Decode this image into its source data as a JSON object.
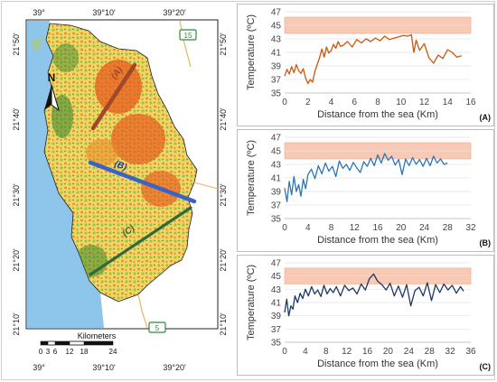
{
  "map": {
    "top_lon_labels": [
      "39°",
      "39°10'",
      "39°20'"
    ],
    "bottom_lon_labels": [
      "39°",
      "39°10'",
      "39°20'"
    ],
    "left_lat_labels": [
      "21°50'",
      "21°40'",
      "21°30'",
      "21°20'",
      "21°10'"
    ],
    "right_lat_labels": [
      "21°50'",
      "21°40'",
      "21°30'",
      "21°20'",
      "21°10'"
    ],
    "north_label": "N",
    "scale_title": "Kilometers",
    "scale_ticks": [
      "0",
      "3",
      "6",
      "12",
      "18",
      "24"
    ],
    "route_15": "15",
    "route_5": "5",
    "transects": [
      {
        "label": "(A)",
        "color": "#a0482a"
      },
      {
        "label": "(B)",
        "color": "#3a63c8"
      },
      {
        "label": "(C)",
        "color": "#2e6a3a"
      }
    ],
    "colors": {
      "sea": "#8ec5ea",
      "land": "#f3dc73",
      "hot": "#e65b1c",
      "vegetation": "#3d8b2e"
    }
  },
  "chart_data": [
    {
      "type": "line",
      "panel_label": "(A)",
      "ylabel": "Temperature (ºC)",
      "xlabel": "Distance from the sea (Km)",
      "ylim": [
        35,
        47
      ],
      "yticks": [
        35,
        37,
        39,
        41,
        43,
        45,
        47
      ],
      "xlim": [
        0,
        16
      ],
      "xticks": [
        0,
        2,
        4,
        6,
        8,
        10,
        12,
        14,
        16
      ],
      "band": [
        43.8,
        46.2
      ],
      "series": [
        {
          "color": "#c55a11",
          "x": [
            0,
            0.2,
            0.4,
            0.6,
            0.8,
            1.0,
            1.2,
            1.4,
            1.6,
            1.8,
            2.0,
            2.2,
            2.4,
            2.6,
            2.8,
            3.0,
            3.2,
            3.4,
            3.6,
            3.8,
            4.0,
            4.2,
            4.4,
            4.6,
            4.8,
            5.0,
            5.4,
            5.8,
            6.2,
            6.6,
            7.0,
            7.4,
            7.8,
            8.2,
            8.6,
            9.0,
            9.4,
            9.8,
            10.2,
            10.6,
            10.9,
            11.1,
            11.3,
            11.6,
            12.0,
            12.4,
            12.8,
            13.2,
            13.6,
            14.0,
            14.4,
            14.8,
            15.2
          ],
          "y": [
            37.5,
            38.5,
            37.8,
            38.9,
            38.0,
            39.2,
            38.3,
            37.9,
            38.6,
            37.2,
            36.4,
            37.0,
            36.6,
            38.2,
            39.2,
            40.2,
            41.5,
            40.3,
            41.8,
            40.9,
            41.3,
            42.2,
            41.6,
            42.6,
            41.9,
            42.0,
            42.6,
            41.8,
            42.9,
            42.4,
            43.0,
            42.6,
            43.1,
            42.7,
            43.4,
            42.9,
            43.1,
            43.3,
            43.5,
            43.4,
            43.6,
            41.0,
            42.8,
            41.3,
            42.3,
            40.2,
            39.4,
            40.6,
            40.1,
            41.4,
            41.0,
            40.3,
            40.5
          ]
        }
      ]
    },
    {
      "type": "line",
      "panel_label": "(B)",
      "ylabel": "Temperature (ºC)",
      "xlabel": "Distance from the sea (Km)",
      "ylim": [
        35,
        47
      ],
      "yticks": [
        35,
        37,
        39,
        41,
        43,
        45,
        47
      ],
      "xlim": [
        0,
        32
      ],
      "xticks": [
        0,
        4,
        8,
        12,
        16,
        20,
        24,
        28,
        32
      ],
      "band": [
        43.8,
        46.2
      ],
      "series": [
        {
          "color": "#2e75b6",
          "x": [
            0,
            0.4,
            0.8,
            1.2,
            1.6,
            2.0,
            2.4,
            2.8,
            3.2,
            3.6,
            4.0,
            4.6,
            5.2,
            5.8,
            6.4,
            7.0,
            7.6,
            8.2,
            8.8,
            9.4,
            10.0,
            10.6,
            11.2,
            11.8,
            12.4,
            13.0,
            13.6,
            14.2,
            14.8,
            15.4,
            16.0,
            16.6,
            17.2,
            17.8,
            18.4,
            19.0,
            19.6,
            20.2,
            20.8,
            21.4,
            22.0,
            22.6,
            23.2,
            23.8,
            24.4,
            25.0,
            25.6,
            26.2,
            26.8,
            27.4,
            28.0
          ],
          "y": [
            39.5,
            37.5,
            40.5,
            38.5,
            41.2,
            39.0,
            40.0,
            38.3,
            40.8,
            39.4,
            41.5,
            42.3,
            40.9,
            42.8,
            41.6,
            43.2,
            42.0,
            42.7,
            41.2,
            43.5,
            42.4,
            43.0,
            42.1,
            43.3,
            42.5,
            41.8,
            43.4,
            42.7,
            43.9,
            42.8,
            44.4,
            43.2,
            44.6,
            43.6,
            44.2,
            42.9,
            43.7,
            41.5,
            43.8,
            42.8,
            44.0,
            43.0,
            43.7,
            42.7,
            43.9,
            42.8,
            44.2,
            43.2,
            43.8,
            43.0,
            43.2
          ]
        }
      ]
    },
    {
      "type": "line",
      "panel_label": "(C)",
      "ylabel": "Temperature (ºC)",
      "xlabel": "Distance from the sea (Km)",
      "ylim": [
        35,
        47
      ],
      "yticks": [
        35,
        37,
        39,
        41,
        43,
        45,
        47
      ],
      "xlim": [
        0,
        36
      ],
      "xticks": [
        0,
        4,
        8,
        12,
        16,
        20,
        24,
        28,
        32,
        36
      ],
      "band": [
        43.8,
        46.2
      ],
      "series": [
        {
          "color": "#1f3864",
          "x": [
            0,
            0.4,
            0.8,
            1.2,
            1.6,
            2.0,
            2.5,
            3.0,
            3.5,
            4.0,
            4.6,
            5.2,
            5.8,
            6.4,
            7.0,
            7.6,
            8.2,
            8.8,
            9.4,
            10.0,
            10.8,
            11.6,
            12.4,
            13.2,
            14.0,
            14.8,
            15.6,
            16.4,
            17.2,
            18.0,
            18.8,
            19.6,
            20.4,
            21.2,
            22.0,
            22.8,
            23.6,
            24.4,
            25.2,
            26.0,
            26.8,
            27.6,
            28.4,
            29.2,
            30.0,
            30.8,
            31.6,
            32.4,
            33.2,
            34.0,
            34.6
          ],
          "y": [
            39.5,
            41.5,
            39.0,
            40.5,
            40.0,
            42.0,
            41.0,
            42.4,
            41.6,
            43.0,
            42.0,
            43.4,
            42.3,
            42.9,
            41.9,
            43.6,
            42.3,
            43.1,
            42.5,
            43.4,
            42.0,
            43.6,
            42.8,
            43.2,
            42.3,
            43.8,
            42.9,
            44.6,
            45.3,
            44.2,
            43.7,
            42.9,
            43.9,
            42.0,
            43.5,
            41.8,
            43.7,
            40.5,
            42.8,
            43.3,
            42.0,
            44.0,
            41.3,
            43.7,
            42.5,
            43.8,
            42.9,
            43.6,
            42.4,
            43.4,
            42.7
          ]
        }
      ]
    }
  ]
}
